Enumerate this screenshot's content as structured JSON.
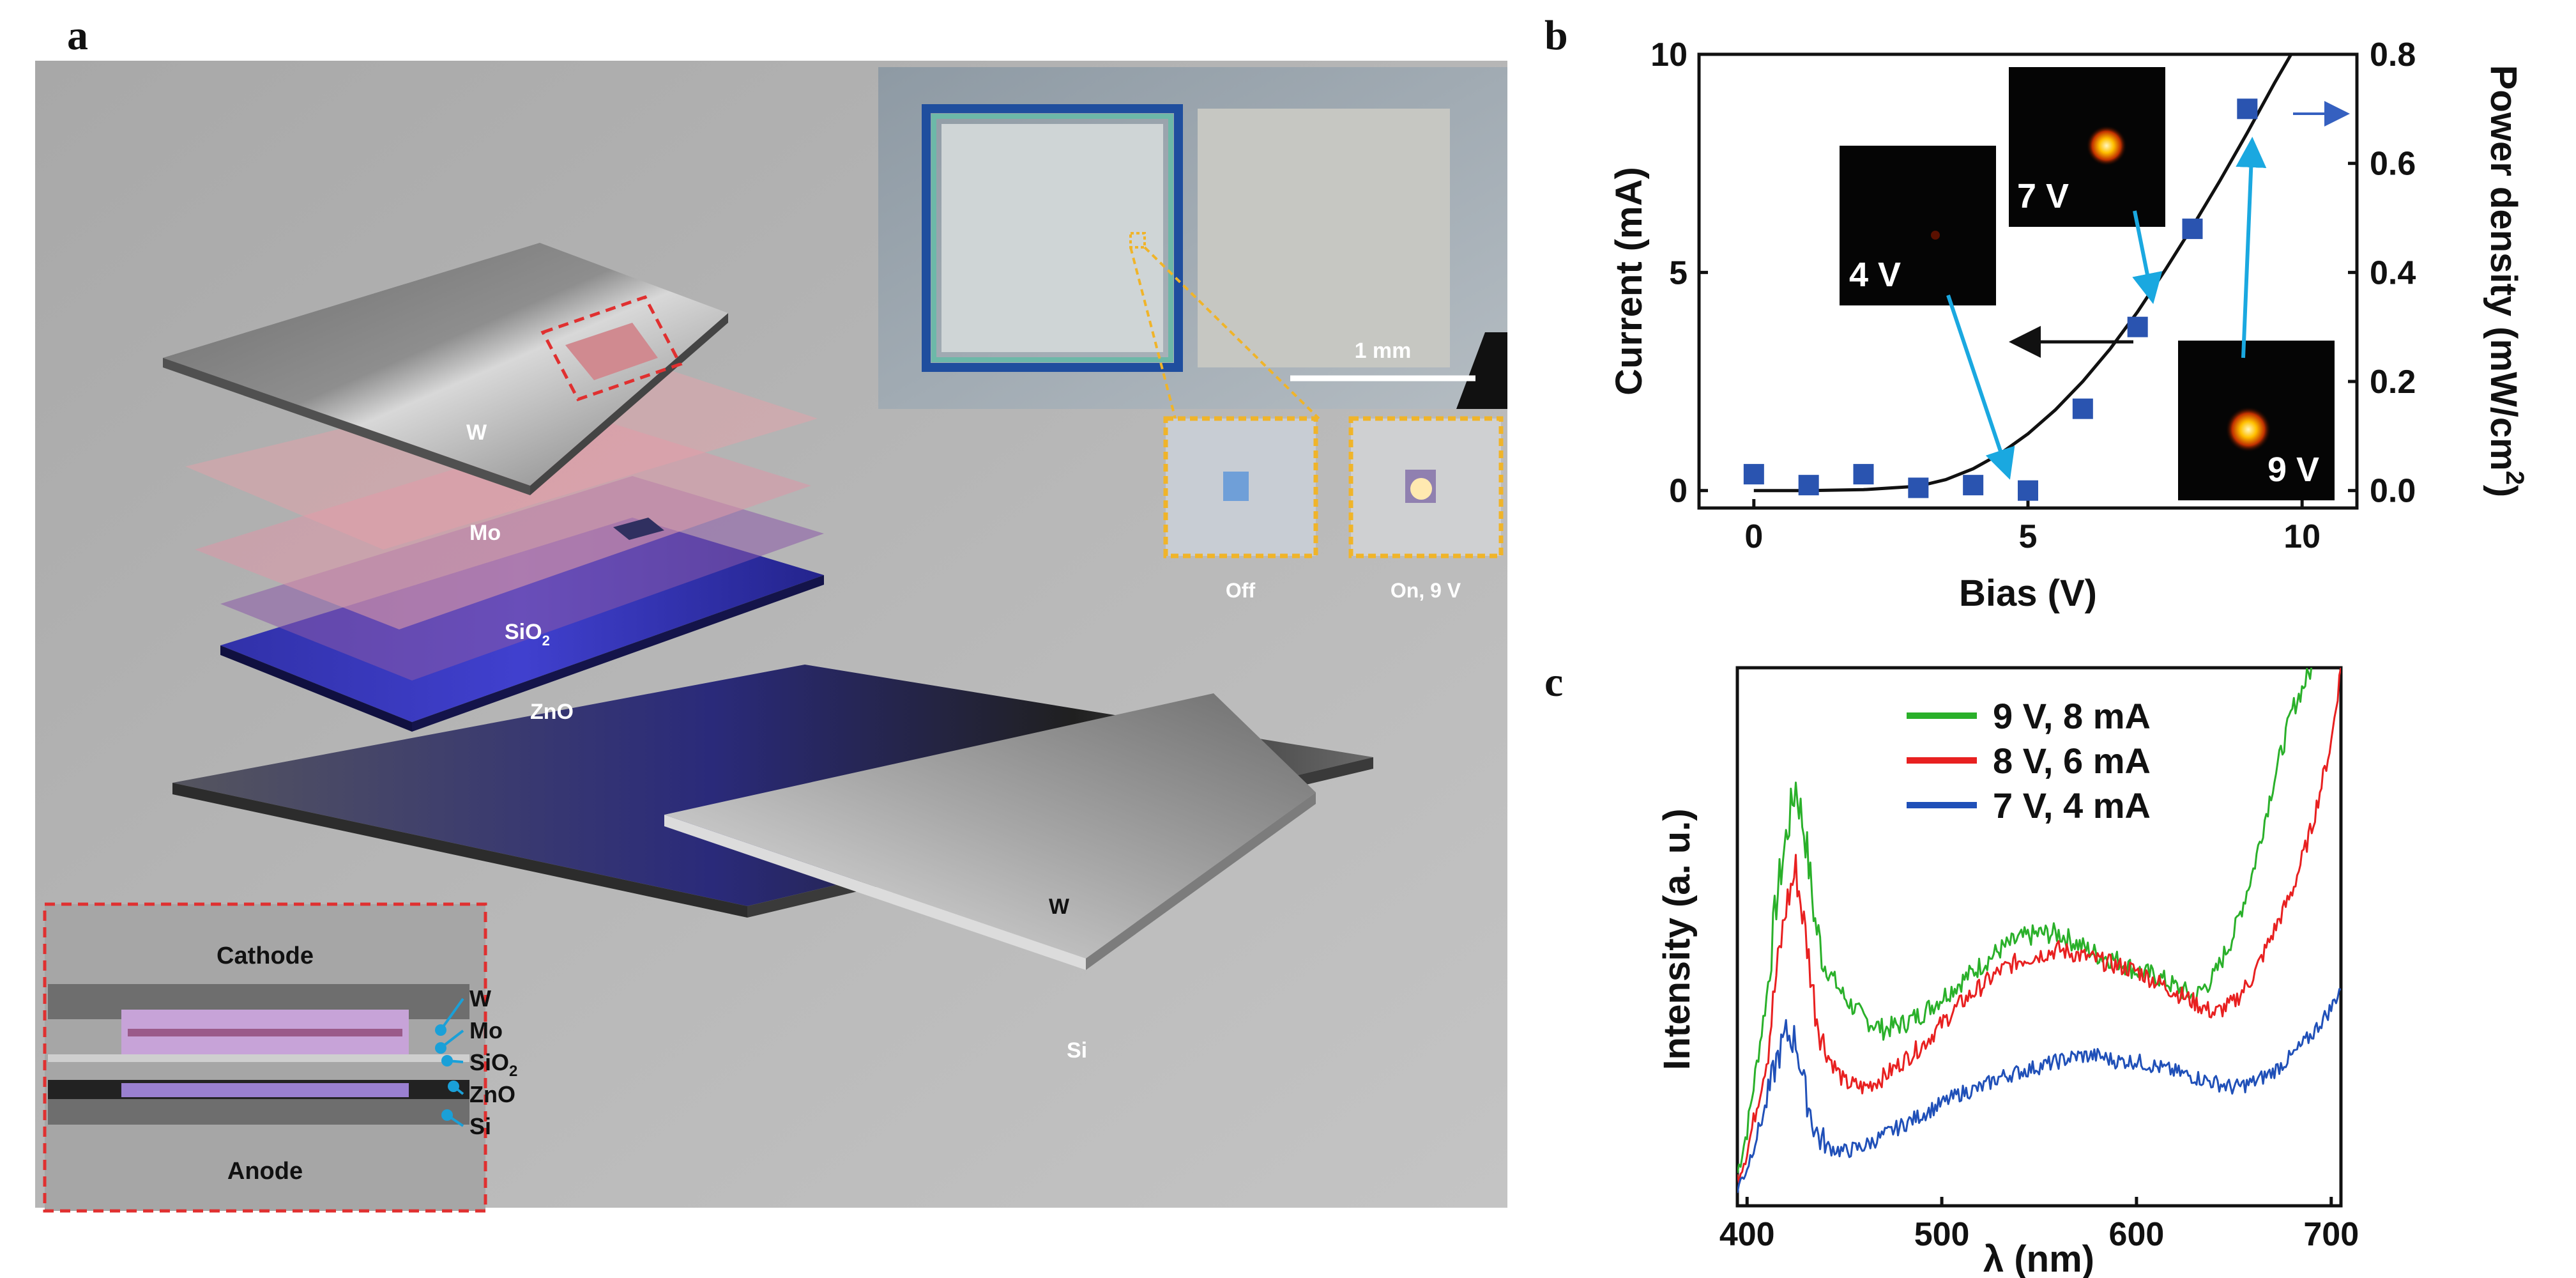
{
  "panel_a": {
    "letter": "a",
    "layers": {
      "w_top": "W",
      "mo": "Mo",
      "sio2_base": "SiO",
      "sio2_sub": "2",
      "zno": "ZnO",
      "w_right": "W",
      "si": "Si"
    },
    "micrograph": {
      "scale_bar": "1 mm",
      "off_label": "Off",
      "on_label": "On, 9 V"
    },
    "inset": {
      "cathode": "Cathode",
      "anode": "Anode",
      "labels": [
        "W",
        "Mo",
        "SiO",
        "ZnO",
        "Si"
      ],
      "sio2_sub": "2"
    },
    "colors": {
      "highlight": "#f0b429",
      "callout": "#e03030",
      "leader": "#1aa0d8"
    }
  },
  "panel_b": {
    "letter": "b",
    "photo_labels": [
      "4 V",
      "7 V",
      "9 V"
    ]
  },
  "panel_c": {
    "letter": "c"
  },
  "chart_data": [
    {
      "id": "b",
      "type": "scatter",
      "xlabel": "Bias (V)",
      "ylabel_left": "Current (mA)",
      "ylabel_right": "Power density (mW/cm",
      "ylabel_right_sup": "2",
      "ylabel_right_close": ")",
      "xlim": [
        -1,
        11
      ],
      "ylim_left": [
        -0.4,
        10
      ],
      "ylim_right": [
        -0.032,
        0.8
      ],
      "x_ticks": [
        0,
        5,
        10
      ],
      "y_left_ticks": [
        0,
        5,
        10
      ],
      "y_right_ticks": [
        "0.0",
        "0.2",
        "0.4",
        "0.6",
        "0.8"
      ],
      "current_curve": {
        "name": "Current",
        "x": [
          0,
          1,
          2,
          3,
          3.5,
          4,
          4.5,
          5,
          5.5,
          6,
          6.5,
          7,
          7.5,
          8,
          8.5,
          9,
          9.5,
          9.8
        ],
        "y": [
          0,
          0,
          0.02,
          0.1,
          0.25,
          0.5,
          0.85,
          1.3,
          1.85,
          2.5,
          3.25,
          4.1,
          5.05,
          6.05,
          7.1,
          8.2,
          9.35,
          10
        ]
      },
      "power_density": {
        "name": "Power density",
        "x": [
          0,
          1,
          2,
          3,
          4,
          5,
          6,
          7,
          8,
          9
        ],
        "y": [
          0.03,
          0.01,
          0.03,
          0.005,
          0.01,
          0.0,
          0.15,
          0.3,
          0.48,
          0.7
        ]
      },
      "colors": {
        "points": "#2a54b0",
        "curve": "#111111",
        "arrow_right": "#3560c0"
      }
    },
    {
      "id": "c",
      "type": "line",
      "xlabel": "λ (nm)",
      "ylabel": "Intensity (a. u.)",
      "xlim": [
        395,
        705
      ],
      "ylim": [
        0,
        100
      ],
      "x_ticks": [
        400,
        500,
        600,
        700
      ],
      "series": [
        {
          "name": "9 V, 8 mA",
          "color": "#2ab02a",
          "x": [
            395,
            400,
            410,
            415,
            420,
            425,
            430,
            435,
            440,
            450,
            460,
            470,
            480,
            490,
            500,
            510,
            520,
            530,
            540,
            550,
            560,
            570,
            580,
            590,
            600,
            610,
            620,
            630,
            640,
            650,
            660,
            670,
            680,
            690
          ],
          "y": [
            5,
            13,
            38,
            56,
            68,
            78,
            68,
            52,
            44,
            38,
            34,
            32,
            33,
            35,
            38,
            41,
            44,
            47,
            49,
            50,
            50,
            48,
            46,
            45,
            43,
            42,
            40,
            38,
            42,
            50,
            62,
            78,
            92,
            100
          ]
        },
        {
          "name": "8 V, 6 mA",
          "color": "#e82020",
          "x": [
            395,
            400,
            410,
            415,
            420,
            425,
            430,
            435,
            440,
            450,
            460,
            470,
            480,
            490,
            500,
            510,
            520,
            530,
            540,
            550,
            560,
            570,
            580,
            590,
            600,
            610,
            620,
            630,
            640,
            650,
            660,
            670,
            680,
            690,
            700,
            705
          ],
          "y": [
            4,
            9,
            26,
            42,
            55,
            62,
            50,
            36,
            28,
            22,
            21,
            23,
            26,
            29,
            33,
            37,
            40,
            43,
            45,
            46,
            47,
            46,
            45,
            44,
            43,
            41,
            39,
            37,
            35,
            37,
            42,
            50,
            58,
            70,
            86,
            100
          ]
        },
        {
          "name": "7 V, 4 mA",
          "color": "#2050b8",
          "x": [
            395,
            400,
            410,
            415,
            420,
            425,
            430,
            435,
            440,
            450,
            460,
            470,
            480,
            490,
            500,
            510,
            520,
            530,
            540,
            550,
            560,
            570,
            580,
            590,
            600,
            610,
            620,
            630,
            640,
            650,
            660,
            670,
            680,
            690,
            700,
            705
          ],
          "y": [
            2,
            6,
            18,
            26,
            31,
            30,
            20,
            13,
            10,
            9,
            10,
            12,
            14,
            16,
            18,
            20,
            21,
            23,
            24,
            25,
            26,
            27,
            27,
            26,
            26,
            25,
            24,
            23,
            22,
            21,
            22,
            24,
            27,
            31,
            36,
            40
          ]
        }
      ]
    }
  ]
}
